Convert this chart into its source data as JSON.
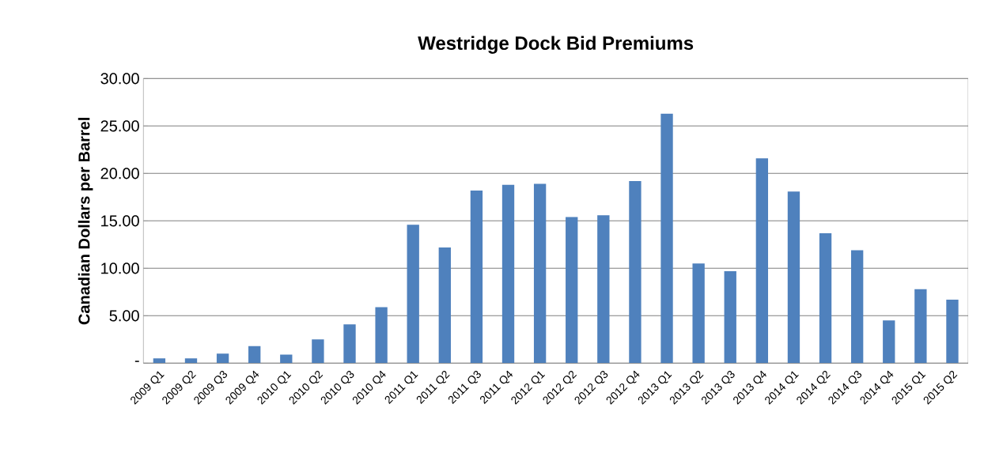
{
  "chart_data": {
    "type": "bar",
    "title": "Westridge Dock Bid Premiums",
    "ylabel": "Canadian Dollars per Barrel",
    "categories": [
      "2009 Q1",
      "2009 Q2",
      "2009 Q3",
      "2009 Q4",
      "2010 Q1",
      "2010 Q2",
      "2010 Q3",
      "2010 Q4",
      "2011 Q1",
      "2011 Q2",
      "2011 Q3",
      "2011 Q4",
      "2012 Q1",
      "2012 Q2",
      "2012 Q3",
      "2012 Q4",
      "2013 Q1",
      "2013 Q2",
      "2013 Q3",
      "2013 Q4",
      "2014 Q1",
      "2014 Q2",
      "2014 Q3",
      "2014 Q4",
      "2015 Q1",
      "2015 Q2"
    ],
    "values": [
      0.5,
      0.5,
      1.0,
      1.8,
      0.9,
      2.5,
      4.1,
      5.9,
      14.6,
      12.2,
      18.2,
      18.8,
      18.9,
      15.4,
      15.6,
      19.2,
      26.3,
      10.5,
      9.7,
      21.6,
      18.1,
      13.7,
      11.9,
      4.5,
      7.8,
      6.7
    ],
    "color": "#4f81bd",
    "ylim": [
      0,
      30
    ],
    "yticks": [
      {
        "value": 0,
        "label": "-"
      },
      {
        "value": 5,
        "label": "5.00"
      },
      {
        "value": 10,
        "label": "10.00"
      },
      {
        "value": 15,
        "label": "15.00"
      },
      {
        "value": 20,
        "label": "20.00"
      },
      {
        "value": 25,
        "label": "25.00"
      },
      {
        "value": 30,
        "label": "30.00"
      }
    ],
    "grid": "y"
  }
}
